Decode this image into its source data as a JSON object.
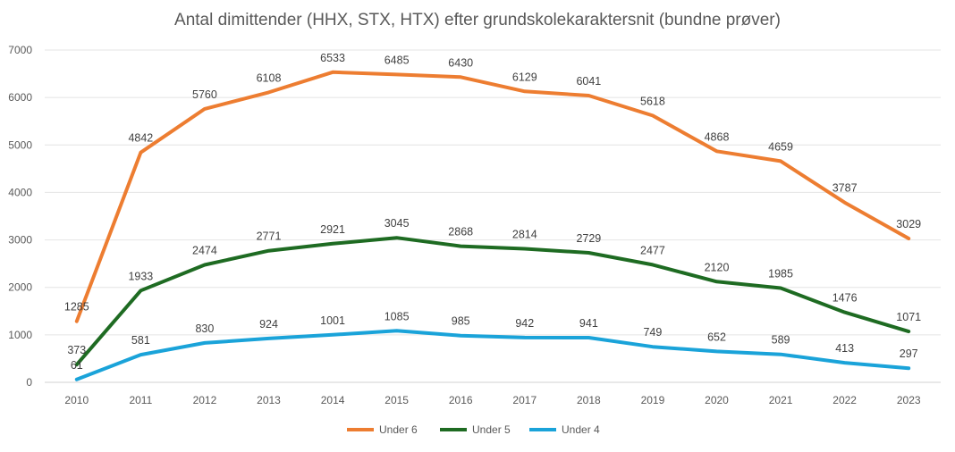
{
  "chart_data": {
    "type": "line",
    "title": "Antal dimittender (HHX, STX, HTX) efter grundskolekaraktersnit (bundne prøver)",
    "xlabel": "",
    "ylabel": "",
    "x": [
      "2010",
      "2011",
      "2012",
      "2013",
      "2014",
      "2015",
      "2016",
      "2017",
      "2018",
      "2019",
      "2020",
      "2021",
      "2022",
      "2023"
    ],
    "ylim": [
      0,
      7000
    ],
    "yticks": [
      0,
      1000,
      2000,
      3000,
      4000,
      5000,
      6000,
      7000
    ],
    "grid": true,
    "legend": "bottom",
    "series": [
      {
        "name": "Under 6",
        "color": "#ED7D31",
        "values": [
          1285,
          4842,
          5760,
          6108,
          6533,
          6485,
          6430,
          6129,
          6041,
          5618,
          4868,
          4659,
          3787,
          3029
        ]
      },
      {
        "name": "Under 5",
        "color": "#1E6B22",
        "values": [
          373,
          1933,
          2474,
          2771,
          2921,
          3045,
          2868,
          2814,
          2729,
          2477,
          2120,
          1985,
          1476,
          1071
        ]
      },
      {
        "name": "Under 4",
        "color": "#1AA3D9",
        "values": [
          61,
          581,
          830,
          924,
          1001,
          1085,
          985,
          942,
          941,
          749,
          652,
          589,
          413,
          297
        ]
      }
    ]
  }
}
